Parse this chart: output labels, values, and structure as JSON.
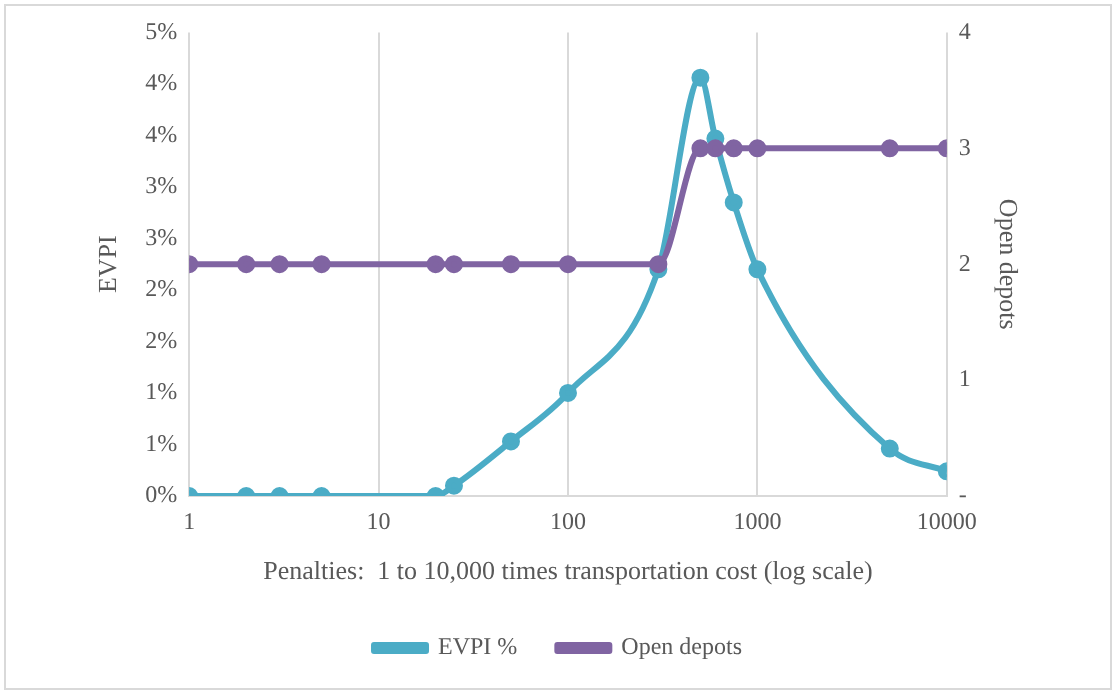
{
  "chart_data": {
    "type": "line",
    "xlabel": "Penalties:  1 to 10,000 times transportation cost (log scale)",
    "ylabel": "EVPI",
    "y2label": "Open depots",
    "x": [
      1,
      2,
      3,
      5,
      20,
      25,
      50,
      100,
      300,
      500,
      600,
      750,
      1000,
      5000,
      10000
    ],
    "series": [
      {
        "name": "EVPI %",
        "color": "#4bacc6",
        "values": [
          0,
          0,
          0,
          0,
          0,
          0.1,
          0.53,
          1.0,
          2.2,
          4.06,
          3.47,
          2.85,
          2.2,
          0.46,
          0.24
        ]
      },
      {
        "name": "Open depots",
        "color": "#8064a2",
        "axis": "y2",
        "values": [
          2,
          2,
          2,
          2,
          2,
          2,
          2,
          2,
          2,
          3,
          3,
          3,
          3,
          3,
          3
        ]
      }
    ],
    "log": "x",
    "xlim": [
      1,
      10000
    ],
    "xticks": [
      1,
      10,
      100,
      1000,
      10000
    ],
    "ylim": [
      0,
      4.5
    ],
    "yticks": [
      {
        "value": 0,
        "label": "0%"
      },
      {
        "value": 0.5,
        "label": "1%"
      },
      {
        "value": 1,
        "label": "1%"
      },
      {
        "value": 1.5,
        "label": "2%"
      },
      {
        "value": 2,
        "label": "2%"
      },
      {
        "value": 2.5,
        "label": "3%"
      },
      {
        "value": 3,
        "label": "3%"
      },
      {
        "value": 3.5,
        "label": "4%"
      },
      {
        "value": 4,
        "label": "4%"
      },
      {
        "value": 4.5,
        "label": "5%"
      }
    ],
    "y2lim": [
      0,
      4
    ],
    "y2ticks": [
      {
        "value": 0,
        "label": "-"
      },
      1,
      2,
      3,
      4
    ],
    "grid": "x",
    "legend": "bottom",
    "marker": "circle",
    "line_style": "solid"
  }
}
